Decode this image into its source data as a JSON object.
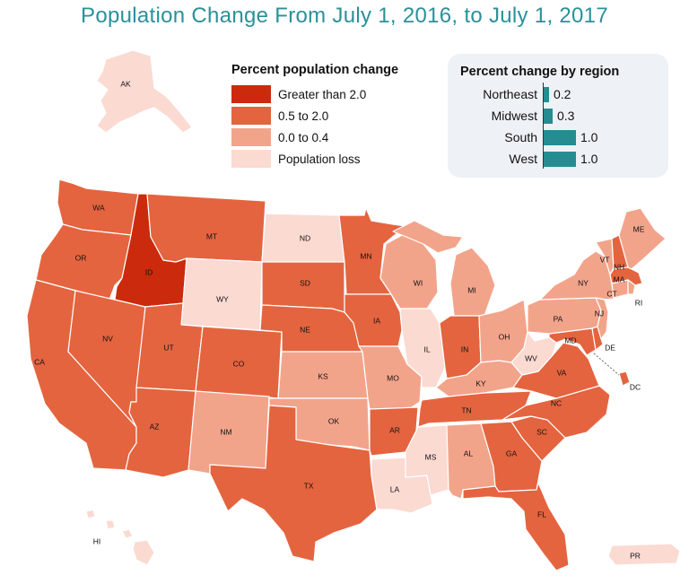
{
  "title": "Population Change From July 1, 2016, to July 1, 2017",
  "legend": {
    "title": "Percent population change",
    "items": [
      {
        "label": "Greater than 2.0",
        "color": "#cc2a0c"
      },
      {
        "label": "0.5 to 2.0",
        "color": "#e4643f"
      },
      {
        "label": "0.0 to 0.4",
        "color": "#f2a48b"
      },
      {
        "label": "Population loss",
        "color": "#fbdad2"
      }
    ]
  },
  "regions": {
    "title": "Percent change by region",
    "max_value": 1.0,
    "items": [
      {
        "name": "Northeast",
        "value": 0.2,
        "label": "0.2"
      },
      {
        "name": "Midwest",
        "value": 0.3,
        "label": "0.3"
      },
      {
        "name": "South",
        "value": 1.0,
        "label": "1.0"
      },
      {
        "name": "West",
        "value": 1.0,
        "label": "1.0"
      }
    ]
  },
  "states": {
    "AK": "Population loss",
    "HI": "Population loss",
    "PR": "Population loss",
    "WA": "0.5 to 2.0",
    "OR": "0.5 to 2.0",
    "CA": "0.5 to 2.0",
    "NV": "0.5 to 2.0",
    "ID": "Greater than 2.0",
    "MT": "0.5 to 2.0",
    "WY": "Population loss",
    "UT": "0.5 to 2.0",
    "AZ": "0.5 to 2.0",
    "CO": "0.5 to 2.0",
    "NM": "0.0 to 0.4",
    "ND": "Population loss",
    "SD": "0.5 to 2.0",
    "NE": "0.5 to 2.0",
    "KS": "0.0 to 0.4",
    "OK": "0.0 to 0.4",
    "TX": "0.5 to 2.0",
    "MN": "0.5 to 2.0",
    "IA": "0.5 to 2.0",
    "MO": "0.0 to 0.4",
    "AR": "0.5 to 2.0",
    "LA": "Population loss",
    "WI": "0.0 to 0.4",
    "IL": "Population loss",
    "MI": "0.0 to 0.4",
    "IN": "0.5 to 2.0",
    "OH": "0.0 to 0.4",
    "KY": "0.0 to 0.4",
    "TN": "0.5 to 2.0",
    "MS": "Population loss",
    "AL": "0.0 to 0.4",
    "GA": "0.5 to 2.0",
    "FL": "0.5 to 2.0",
    "SC": "0.5 to 2.0",
    "NC": "0.5 to 2.0",
    "VA": "0.5 to 2.0",
    "WV": "Population loss",
    "MD": "0.5 to 2.0",
    "DE": "0.5 to 2.0",
    "DC": "0.5 to 2.0",
    "PA": "0.0 to 0.4",
    "NY": "0.0 to 0.4",
    "NJ": "0.0 to 0.4",
    "CT": "0.0 to 0.4",
    "RI": "0.0 to 0.4",
    "MA": "0.5 to 2.0",
    "VT": "0.0 to 0.4",
    "NH": "0.5 to 2.0",
    "ME": "0.0 to 0.4"
  }
}
